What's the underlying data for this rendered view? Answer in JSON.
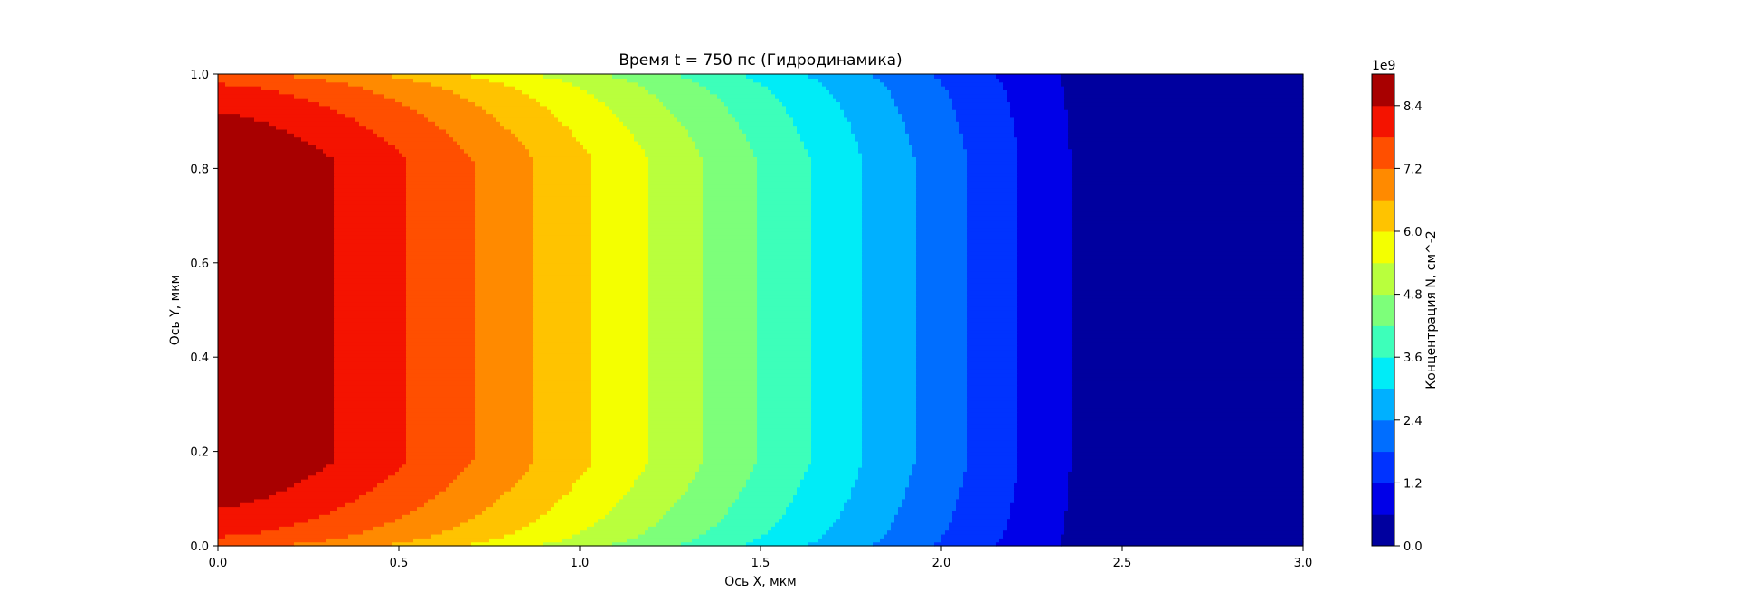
{
  "chart_data": {
    "type": "heatmap",
    "subtype": "filled-contour",
    "title": "Время t = 750 пс (Гидродинамика)",
    "xlabel": "Ось X, мкм",
    "ylabel": "Ось Y, мкм",
    "xlim": [
      0,
      3
    ],
    "ylim": [
      0,
      1
    ],
    "x_ticks": [
      "0.0",
      "0.5",
      "1.0",
      "1.5",
      "2.0",
      "2.5",
      "3.0"
    ],
    "y_ticks": [
      "0.0",
      "0.2",
      "0.4",
      "0.6",
      "0.8",
      "1.0"
    ],
    "colorbar": {
      "label": "Концентрация N, см^-2",
      "multiplier": "1e9",
      "tick_labels": [
        "0.0",
        "1.2",
        "2.4",
        "3.6",
        "4.8",
        "6.0",
        "7.2",
        "8.4"
      ],
      "levels": [
        0.0,
        0.6,
        1.2,
        1.8,
        2.4,
        3.0,
        3.6,
        4.2,
        4.8,
        5.4,
        6.0,
        6.6,
        7.2,
        7.8,
        8.4,
        9.0
      ],
      "colors": [
        "#00009f",
        "#0000e8",
        "#0033ff",
        "#006eff",
        "#00b0ff",
        "#00ecf7",
        "#3dffba",
        "#7dff7a",
        "#b9ff3d",
        "#f4ff00",
        "#ffc300",
        "#ff8a00",
        "#ff4f00",
        "#f41300",
        "#a80000"
      ],
      "colormap": "jet"
    },
    "contour_boundaries_x_at_mid_y": [
      0.19,
      0.39,
      0.53,
      0.66,
      0.77,
      0.88,
      0.99,
      1.1,
      1.21,
      1.32,
      1.42,
      1.56,
      1.73,
      2.0
    ],
    "description": "Concentration decreases with X from ~9e9 at X=0 to ~0 beyond X≈2.0 мкм; contours curve toward lower X near Y=0 and Y=1."
  }
}
